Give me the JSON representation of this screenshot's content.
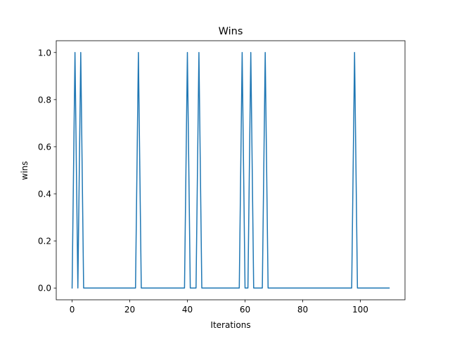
{
  "chart_data": {
    "type": "line",
    "title": "Wins",
    "xlabel": "Iterations",
    "ylabel": "wins",
    "xlim": [
      -5.5,
      115.5
    ],
    "ylim": [
      -0.05,
      1.05
    ],
    "xticks": [
      0,
      20,
      40,
      60,
      80,
      100
    ],
    "yticks": [
      0.0,
      0.2,
      0.4,
      0.6,
      0.8,
      1.0
    ],
    "xtick_labels": [
      "0",
      "20",
      "40",
      "60",
      "80",
      "100"
    ],
    "ytick_labels": [
      "0.0",
      "0.2",
      "0.4",
      "0.6",
      "0.8",
      "1.0"
    ],
    "grid": false,
    "series": [
      {
        "color": "#1f77b4",
        "x_start": 0,
        "x_end": 110,
        "win_iterations": [
          1,
          3,
          23,
          40,
          44,
          59,
          62,
          67,
          98
        ]
      }
    ]
  }
}
